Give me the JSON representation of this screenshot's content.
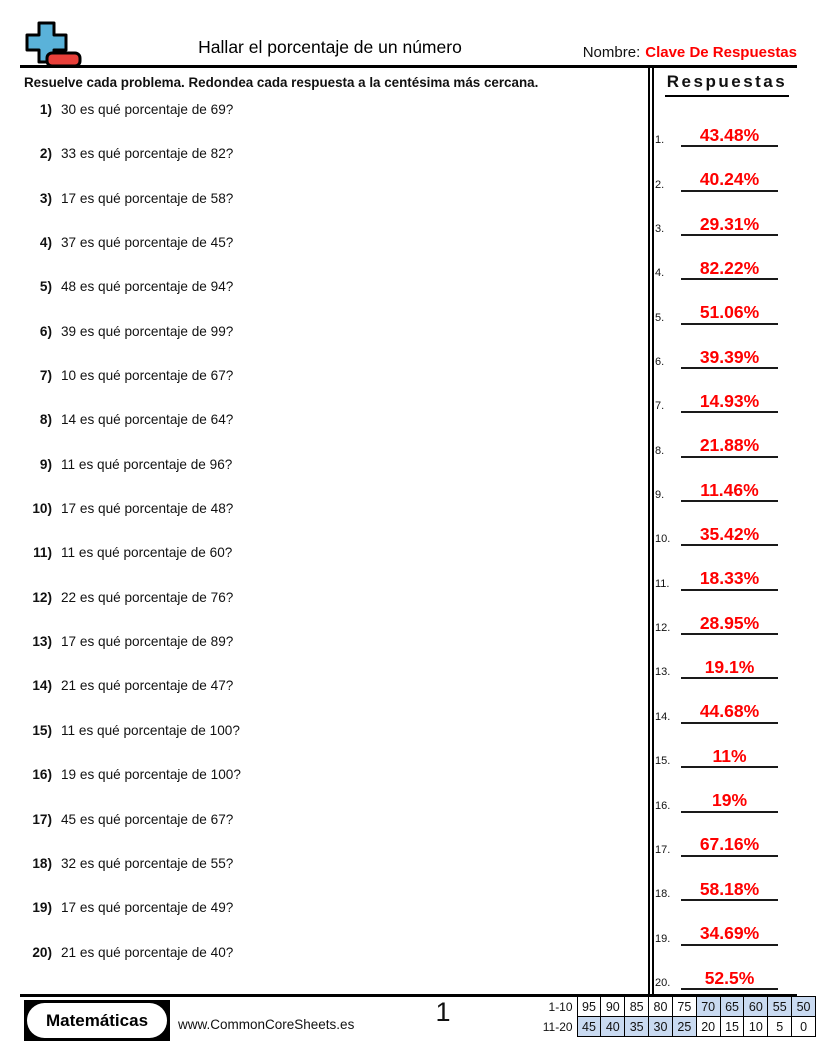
{
  "header": {
    "title": "Hallar el porcentaje de un número",
    "name_label": "Nombre:",
    "name_value": "Clave De Respuestas"
  },
  "instruction": "Resuelve cada problema. Redondea cada respuesta a la centésima más cercana.",
  "answers_header": "Respuestas",
  "problems": [
    {
      "num": "1)",
      "text": "30 es qué porcentaje de 69?"
    },
    {
      "num": "2)",
      "text": "33 es qué porcentaje de 82?"
    },
    {
      "num": "3)",
      "text": "17 es qué porcentaje de 58?"
    },
    {
      "num": "4)",
      "text": "37 es qué porcentaje de 45?"
    },
    {
      "num": "5)",
      "text": "48 es qué porcentaje de 94?"
    },
    {
      "num": "6)",
      "text": "39 es qué porcentaje de 99?"
    },
    {
      "num": "7)",
      "text": "10 es qué porcentaje de 67?"
    },
    {
      "num": "8)",
      "text": "14 es qué porcentaje de 64?"
    },
    {
      "num": "9)",
      "text": "11 es qué porcentaje de 96?"
    },
    {
      "num": "10)",
      "text": "17 es qué porcentaje de 48?"
    },
    {
      "num": "11)",
      "text": "11 es qué porcentaje de 60?"
    },
    {
      "num": "12)",
      "text": "22 es qué porcentaje de 76?"
    },
    {
      "num": "13)",
      "text": "17 es qué porcentaje de 89?"
    },
    {
      "num": "14)",
      "text": "21 es qué porcentaje de 47?"
    },
    {
      "num": "15)",
      "text": "11 es qué porcentaje de 100?"
    },
    {
      "num": "16)",
      "text": "19 es qué porcentaje de 100?"
    },
    {
      "num": "17)",
      "text": "45 es qué porcentaje de 67?"
    },
    {
      "num": "18)",
      "text": "32 es qué porcentaje de 55?"
    },
    {
      "num": "19)",
      "text": "17 es qué porcentaje de 49?"
    },
    {
      "num": "20)",
      "text": "21 es qué porcentaje de 40?"
    }
  ],
  "answers": [
    {
      "num": "1.",
      "value": "43.48%"
    },
    {
      "num": "2.",
      "value": "40.24%"
    },
    {
      "num": "3.",
      "value": "29.31%"
    },
    {
      "num": "4.",
      "value": "82.22%"
    },
    {
      "num": "5.",
      "value": "51.06%"
    },
    {
      "num": "6.",
      "value": "39.39%"
    },
    {
      "num": "7.",
      "value": "14.93%"
    },
    {
      "num": "8.",
      "value": "21.88%"
    },
    {
      "num": "9.",
      "value": "11.46%"
    },
    {
      "num": "10.",
      "value": "35.42%"
    },
    {
      "num": "11.",
      "value": "18.33%"
    },
    {
      "num": "12.",
      "value": "28.95%"
    },
    {
      "num": "13.",
      "value": "19.1%"
    },
    {
      "num": "14.",
      "value": "44.68%"
    },
    {
      "num": "15.",
      "value": "11%"
    },
    {
      "num": "16.",
      "value": "19%"
    },
    {
      "num": "17.",
      "value": "67.16%"
    },
    {
      "num": "18.",
      "value": "58.18%"
    },
    {
      "num": "19.",
      "value": "34.69%"
    },
    {
      "num": "20.",
      "value": "52.5%"
    }
  ],
  "footer": {
    "brand": "Matemáticas",
    "website": "www.CommonCoreSheets.es",
    "page_number": "1",
    "score_table": {
      "rows": [
        {
          "label": "1-10",
          "cells": [
            "95",
            "90",
            "85",
            "80",
            "75",
            "70",
            "65",
            "60",
            "55",
            "50"
          ],
          "highlighted": [
            false,
            false,
            false,
            false,
            false,
            true,
            true,
            true,
            true,
            true
          ]
        },
        {
          "label": "11-20",
          "cells": [
            "45",
            "40",
            "35",
            "30",
            "25",
            "20",
            "15",
            "10",
            "5",
            "0"
          ],
          "highlighted": [
            true,
            true,
            true,
            true,
            true,
            false,
            false,
            false,
            false,
            false
          ]
        }
      ]
    }
  },
  "colors": {
    "answer_red": "#fe0000",
    "highlight_blue": "#c9daf1",
    "logo_blue": "#5ab2d9",
    "logo_red": "#e8403a"
  }
}
